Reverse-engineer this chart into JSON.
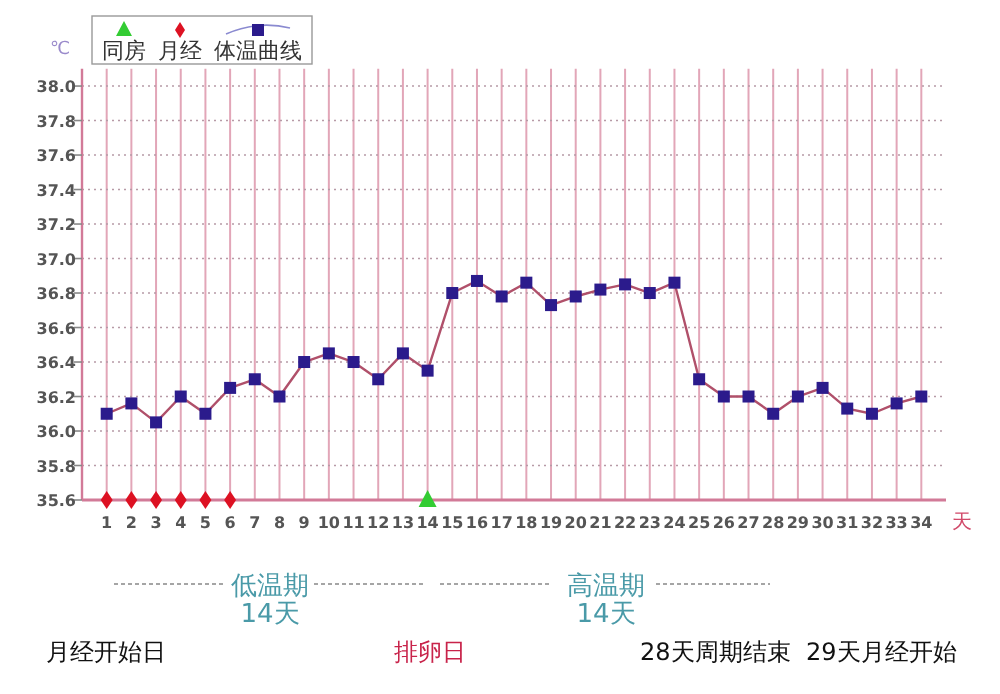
{
  "chart_data": {
    "type": "line",
    "ylabel": "℃",
    "xlabel": "天",
    "xlim": [
      0,
      35
    ],
    "xticks": [
      1,
      2,
      3,
      4,
      5,
      6,
      7,
      8,
      9,
      10,
      11,
      12,
      13,
      14,
      15,
      16,
      17,
      18,
      19,
      20,
      21,
      22,
      23,
      24,
      25,
      26,
      27,
      28,
      29,
      30,
      31,
      32,
      33,
      34
    ],
    "ylim": [
      35.6,
      38.1
    ],
    "yticks": [
      35.6,
      35.8,
      {
        "value": 36,
        "label": "36.0"
      },
      36.2,
      36.4,
      36.6,
      36.8,
      {
        "value": 37,
        "label": "37.0"
      },
      37.2,
      37.4,
      37.6,
      37.8,
      {
        "value": 38,
        "label": "38.0"
      }
    ],
    "grid": true,
    "legend": "top left",
    "series": [
      {
        "name": "同房",
        "type": "scatter",
        "marker": "triangle",
        "color": "#33cc33",
        "x": [
          14
        ],
        "values": [
          35.6
        ]
      },
      {
        "name": "月经",
        "type": "scatter",
        "marker": "diamond",
        "color": "#dd1122",
        "x": [
          1,
          2,
          3,
          4,
          5,
          6
        ],
        "values": [
          35.6,
          35.6,
          35.6,
          35.6,
          35.6,
          35.6
        ]
      },
      {
        "name": "体温曲线",
        "marker": "square",
        "color": "#2b1b8c",
        "x": [
          1,
          2,
          3,
          4,
          5,
          6,
          7,
          8,
          9,
          10,
          11,
          12,
          13,
          14,
          15,
          16,
          17,
          18,
          19,
          20,
          21,
          22,
          23,
          24,
          25,
          26,
          27,
          28,
          29,
          30,
          31,
          32,
          33,
          34
        ],
        "values": [
          36.1,
          36.16,
          36.05,
          36.2,
          36.1,
          36.25,
          36.3,
          36.2,
          36.4,
          36.45,
          36.4,
          36.3,
          36.45,
          36.35,
          36.8,
          36.87,
          36.78,
          36.86,
          36.73,
          36.78,
          36.82,
          36.85,
          36.8,
          36.86,
          36.3,
          36.2,
          36.2,
          36.1,
          36.2,
          36.25,
          36.13,
          36.1,
          36.16,
          36.2
        ]
      }
    ],
    "annotations": [
      "低温期",
      "14天",
      "高温期",
      "14天",
      "月经开始日",
      "排卵日",
      "28天周期结束",
      "29天月经开始"
    ]
  }
}
